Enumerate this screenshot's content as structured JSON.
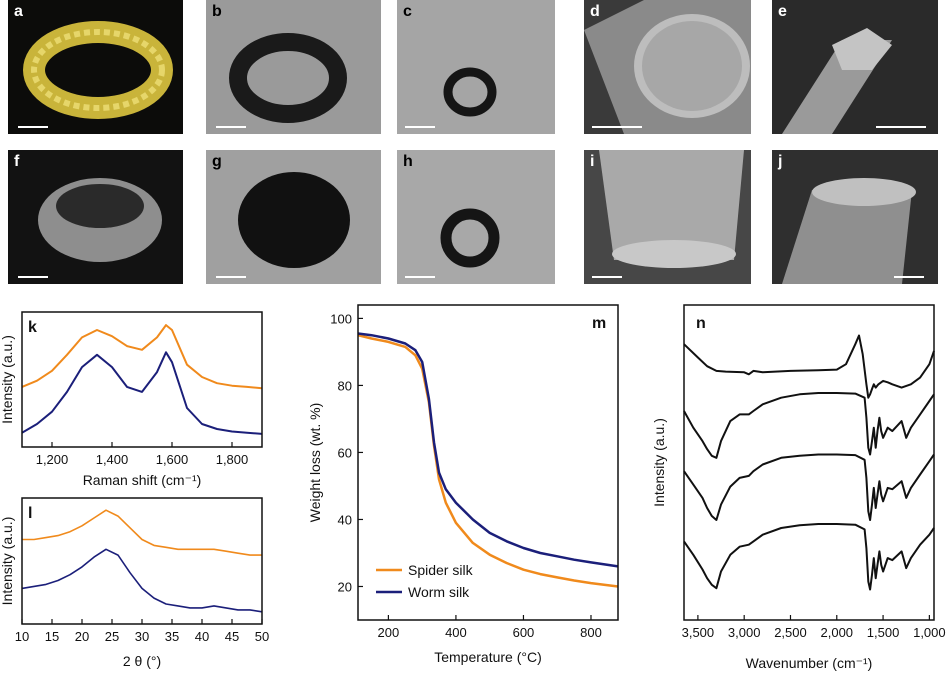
{
  "panels": {
    "a": "a",
    "b": "b",
    "c": "c",
    "d": "d",
    "e": "e",
    "f": "f",
    "g": "g",
    "h": "h",
    "i": "i",
    "j": "j"
  },
  "colors": {
    "spider": "#F08A1C",
    "worm": "#1B1F7A",
    "ftir": "#111111"
  },
  "chart_data": [
    {
      "id": "k",
      "type": "line",
      "label": "k",
      "xlabel": "Raman shift (cm⁻¹)",
      "ylabel": "Intensity (a.u.)",
      "xlim": [
        1100,
        1900
      ],
      "xticks": [
        "1,200",
        "1,400",
        "1,600",
        "1,800"
      ],
      "xtick_values": [
        1200,
        1400,
        1600,
        1800
      ],
      "series": [
        {
          "color": "#F08A1C",
          "x": [
            1100,
            1150,
            1200,
            1250,
            1300,
            1350,
            1400,
            1450,
            1500,
            1550,
            1580,
            1600,
            1650,
            1700,
            1750,
            1800,
            1850,
            1900
          ],
          "y": [
            0.72,
            0.77,
            0.85,
            0.98,
            1.12,
            1.18,
            1.13,
            1.05,
            1.02,
            1.12,
            1.22,
            1.18,
            0.9,
            0.8,
            0.75,
            0.73,
            0.72,
            0.71
          ]
        },
        {
          "color": "#1B1F7A",
          "x": [
            1100,
            1150,
            1200,
            1250,
            1300,
            1350,
            1400,
            1450,
            1500,
            1550,
            1580,
            1600,
            1650,
            1700,
            1750,
            1800,
            1850,
            1900
          ],
          "y": [
            0.35,
            0.42,
            0.52,
            0.68,
            0.88,
            0.98,
            0.88,
            0.72,
            0.68,
            0.84,
            1.0,
            0.92,
            0.55,
            0.42,
            0.38,
            0.36,
            0.35,
            0.34
          ]
        }
      ]
    },
    {
      "id": "l",
      "type": "line",
      "label": "l",
      "xlabel": "2 θ (°)",
      "ylabel": "Intensity (a.u.)",
      "xlim": [
        10,
        50
      ],
      "xticks": [
        "10",
        "15",
        "20",
        "25",
        "30",
        "35",
        "40",
        "45",
        "50"
      ],
      "xtick_values": [
        10,
        15,
        20,
        25,
        30,
        35,
        40,
        45,
        50
      ],
      "series": [
        {
          "color": "#F08A1C",
          "x": [
            10,
            12,
            14,
            16,
            18,
            20,
            22,
            24,
            26,
            28,
            30,
            32,
            34,
            36,
            38,
            40,
            42,
            44,
            46,
            48,
            50
          ],
          "y": [
            0.8,
            0.8,
            0.81,
            0.82,
            0.84,
            0.87,
            0.91,
            0.95,
            0.92,
            0.86,
            0.8,
            0.77,
            0.76,
            0.75,
            0.75,
            0.75,
            0.75,
            0.74,
            0.73,
            0.72,
            0.72
          ]
        },
        {
          "color": "#1B1F7A",
          "x": [
            10,
            12,
            14,
            16,
            18,
            20,
            22,
            24,
            26,
            28,
            30,
            32,
            34,
            36,
            38,
            40,
            42,
            44,
            46,
            48,
            50
          ],
          "y": [
            0.55,
            0.56,
            0.57,
            0.59,
            0.62,
            0.66,
            0.71,
            0.75,
            0.72,
            0.63,
            0.55,
            0.5,
            0.47,
            0.46,
            0.45,
            0.45,
            0.46,
            0.45,
            0.44,
            0.44,
            0.43
          ]
        }
      ]
    },
    {
      "id": "m",
      "type": "line",
      "label": "m",
      "xlabel": "Temperature (°C)",
      "ylabel": "Weight loss (wt. %)",
      "xlim": [
        110,
        880
      ],
      "ylim": [
        10,
        104
      ],
      "xticks": [
        "200",
        "400",
        "600",
        "800"
      ],
      "xtick_values": [
        200,
        400,
        600,
        800
      ],
      "yticks": [
        "20",
        "40",
        "60",
        "80",
        "100"
      ],
      "ytick_values": [
        20,
        40,
        60,
        80,
        100
      ],
      "legend": {
        "position": "bottom-left"
      },
      "series": [
        {
          "name": "Spider silk",
          "color": "#F08A1C",
          "x": [
            110,
            150,
            200,
            250,
            280,
            300,
            320,
            335,
            350,
            370,
            400,
            450,
            500,
            550,
            600,
            650,
            700,
            750,
            800,
            880
          ],
          "y": [
            95,
            94,
            93,
            91.5,
            89,
            85,
            75,
            62,
            52,
            45,
            39,
            33,
            29.5,
            27,
            25,
            23.7,
            22.7,
            21.8,
            21,
            20
          ]
        },
        {
          "name": "Worm silk",
          "color": "#1B1F7A",
          "x": [
            110,
            150,
            200,
            250,
            280,
            300,
            320,
            335,
            350,
            370,
            400,
            450,
            500,
            550,
            600,
            650,
            700,
            750,
            800,
            880
          ],
          "y": [
            95.5,
            95,
            94,
            92.5,
            90.5,
            87,
            76,
            63,
            54,
            49,
            45,
            40,
            36,
            33.5,
            31.5,
            30,
            29,
            28,
            27.2,
            26
          ]
        }
      ]
    },
    {
      "id": "n",
      "type": "line",
      "label": "n",
      "xlabel": "Wavenumber (cm⁻¹)",
      "ylabel": "Intensity (a.u.)",
      "xlim": [
        3650,
        950
      ],
      "xticks": [
        "3,500",
        "3,000",
        "2,500",
        "2,000",
        "1,500",
        "1,000"
      ],
      "xtick_values": [
        3500,
        3000,
        2500,
        2000,
        1500,
        1000
      ],
      "series": [
        {
          "color": "#111111",
          "x": [
            3650,
            3500,
            3400,
            3300,
            3200,
            3000,
            2950,
            2900,
            2800,
            2500,
            2200,
            2000,
            1900,
            1800,
            1760,
            1720,
            1680,
            1660,
            1640,
            1620,
            1600,
            1580,
            1550,
            1500,
            1450,
            1400,
            1300,
            1200,
            1100,
            1000,
            950
          ],
          "y": [
            3.85,
            3.65,
            3.52,
            3.45,
            3.44,
            3.43,
            3.4,
            3.45,
            3.43,
            3.45,
            3.46,
            3.47,
            3.55,
            3.85,
            3.98,
            3.7,
            3.25,
            3.05,
            3.1,
            3.18,
            3.25,
            3.2,
            3.25,
            3.3,
            3.28,
            3.25,
            3.2,
            3.25,
            3.35,
            3.55,
            3.75
          ]
        },
        {
          "color": "#111111",
          "x": [
            3650,
            3550,
            3450,
            3400,
            3350,
            3300,
            3250,
            3150,
            3050,
            2950,
            2900,
            2800,
            2600,
            2400,
            2200,
            2000,
            1800,
            1700,
            1680,
            1660,
            1640,
            1620,
            1600,
            1580,
            1560,
            1540,
            1520,
            1500,
            1450,
            1400,
            1300,
            1250,
            1200,
            1100,
            1000,
            950
          ],
          "y": [
            2.85,
            2.6,
            2.4,
            2.28,
            2.18,
            2.15,
            2.4,
            2.7,
            2.8,
            2.8,
            2.85,
            2.95,
            3.05,
            3.1,
            3.12,
            3.12,
            3.11,
            3.05,
            2.75,
            2.3,
            2.2,
            2.4,
            2.6,
            2.3,
            2.55,
            2.75,
            2.55,
            2.45,
            2.6,
            2.55,
            2.7,
            2.45,
            2.6,
            2.8,
            3.0,
            3.1
          ]
        },
        {
          "color": "#111111",
          "x": [
            3650,
            3550,
            3450,
            3400,
            3350,
            3300,
            3250,
            3150,
            3050,
            2950,
            2900,
            2800,
            2600,
            2400,
            2200,
            2000,
            1800,
            1700,
            1680,
            1660,
            1640,
            1620,
            1600,
            1580,
            1560,
            1540,
            1520,
            1500,
            1450,
            1400,
            1300,
            1250,
            1200,
            1100,
            1000,
            950
          ],
          "y": [
            1.95,
            1.75,
            1.55,
            1.4,
            1.28,
            1.22,
            1.45,
            1.72,
            1.85,
            1.88,
            1.95,
            2.05,
            2.15,
            2.18,
            2.2,
            2.2,
            2.19,
            2.12,
            1.85,
            1.35,
            1.22,
            1.45,
            1.7,
            1.4,
            1.6,
            1.8,
            1.6,
            1.5,
            1.7,
            1.68,
            1.8,
            1.55,
            1.7,
            1.9,
            2.1,
            2.2
          ]
        },
        {
          "color": "#111111",
          "x": [
            3650,
            3550,
            3450,
            3400,
            3350,
            3300,
            3250,
            3150,
            3050,
            2950,
            2900,
            2800,
            2600,
            2400,
            2200,
            2000,
            1800,
            1700,
            1680,
            1660,
            1640,
            1620,
            1600,
            1580,
            1560,
            1540,
            1520,
            1500,
            1450,
            1400,
            1300,
            1250,
            1200,
            1100,
            1000,
            950
          ],
          "y": [
            0.9,
            0.7,
            0.48,
            0.35,
            0.25,
            0.2,
            0.45,
            0.7,
            0.82,
            0.85,
            0.9,
            1.0,
            1.1,
            1.14,
            1.16,
            1.16,
            1.15,
            1.08,
            0.8,
            0.3,
            0.18,
            0.4,
            0.65,
            0.35,
            0.55,
            0.75,
            0.55,
            0.45,
            0.65,
            0.62,
            0.75,
            0.5,
            0.65,
            0.85,
            1.0,
            1.1
          ]
        }
      ]
    }
  ]
}
